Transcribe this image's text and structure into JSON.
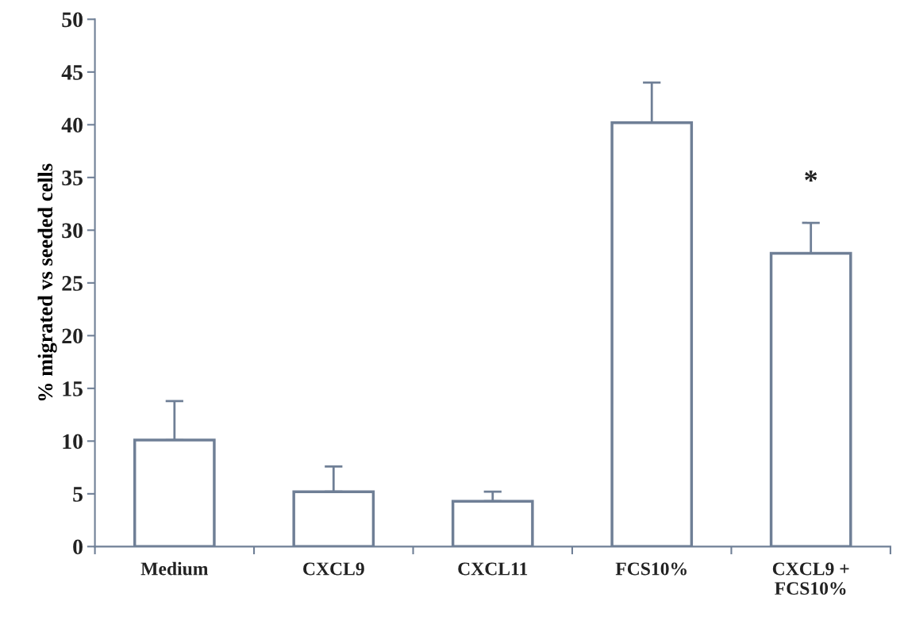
{
  "chart_data": {
    "type": "bar",
    "ylabel": "% migrated vs seeded cells",
    "categories": [
      "Medium",
      "CXCL9",
      "CXCL11",
      "FCS10%",
      "CXCL9 +\nFCS10%"
    ],
    "values": [
      10.1,
      5.2,
      4.3,
      40.2,
      27.8
    ],
    "errors": [
      [
        10.1,
        13.8
      ],
      [
        5.2,
        7.6
      ],
      [
        4.3,
        5.2
      ],
      [
        40.2,
        44.0
      ],
      [
        27.8,
        30.7
      ]
    ],
    "color": "#ffffff",
    "annotations": [
      "*"
    ],
    "ylim": [
      0,
      50
    ],
    "yticks": [
      0,
      5,
      10,
      15,
      20,
      25,
      30,
      35,
      40,
      45,
      50
    ],
    "grid": false
  }
}
